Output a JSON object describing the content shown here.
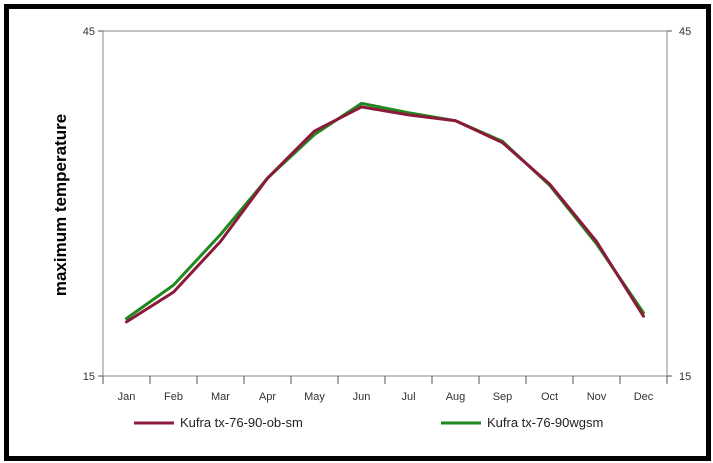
{
  "chart_data": {
    "type": "line",
    "title": "",
    "xlabel": "",
    "ylabel": "maximum temperature",
    "categories": [
      "Jan",
      "Feb",
      "Mar",
      "Apr",
      "May",
      "Jun",
      "Jul",
      "Aug",
      "Sep",
      "Oct",
      "Nov",
      "Dec"
    ],
    "ylim": [
      15,
      45
    ],
    "y_ticks": [
      "15",
      "45"
    ],
    "y2_ticks": [
      "15",
      "45"
    ],
    "grid": false,
    "legend_position": "bottom",
    "series": [
      {
        "name": "Kufra tx-76-90-ob-sm",
        "color": "#8b1a3a",
        "values": [
          19.7,
          22.3,
          26.7,
          32.2,
          36.3,
          38.4,
          37.7,
          37.2,
          35.3,
          31.7,
          26.7,
          20.2
        ]
      },
      {
        "name": "Kufra tx-76-90wgsm",
        "color": "#1f8a1f",
        "values": [
          20.0,
          22.9,
          27.3,
          32.2,
          36.0,
          38.7,
          37.9,
          37.2,
          35.4,
          31.6,
          26.5,
          20.5
        ]
      }
    ]
  }
}
